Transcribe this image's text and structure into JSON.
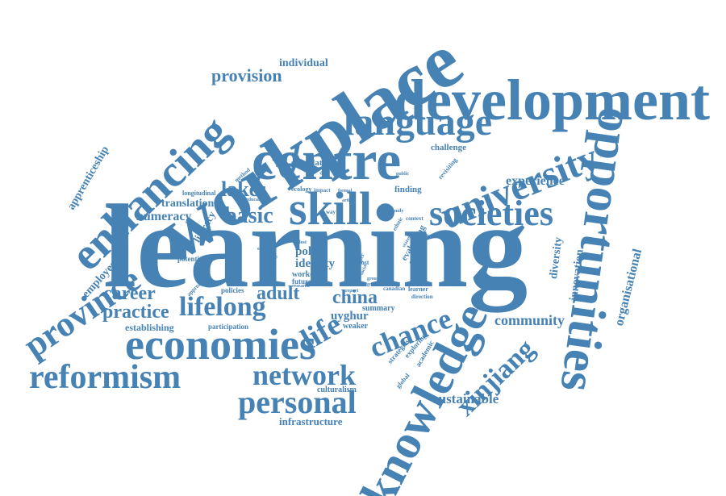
{
  "cloud": {
    "color": "#4682b4",
    "words": [
      "learning",
      "workplace",
      "development",
      "opportunities",
      "knowledge",
      "enhancing",
      "centre",
      "language",
      "university",
      "societies",
      "skill",
      "province",
      "economies",
      "reformism",
      "personal",
      "network",
      "life",
      "lifelong",
      "xinjiang",
      "chance",
      "basic",
      "lakes",
      "china",
      "adult",
      "career",
      "practice",
      "community",
      "experience",
      "innovation",
      "diversity",
      "organisational",
      "sustainable",
      "provision",
      "individual",
      "apprenticeship",
      "employee",
      "numeracy",
      "translation",
      "literacy",
      "identity",
      "policy",
      "uyghur",
      "establishing",
      "participation",
      "infrastructure",
      "culturalism",
      "summary",
      "weaker",
      "challenge",
      "stimulating",
      "strategies",
      "academic",
      "exploring",
      "evaluating",
      "stronger",
      "finding",
      "context",
      "ethnic",
      "policies",
      "potential",
      "approach",
      "longitudinal",
      "educated",
      "ecology",
      "impact",
      "method",
      "hoffman",
      "revisiting",
      "most",
      "worker",
      "future",
      "research",
      "canadian",
      "learner",
      "direction",
      "lost",
      "putting",
      "paper",
      "social",
      "routine",
      "tactic",
      "report",
      "family",
      "way",
      "article",
      "formal",
      "effect",
      "group",
      "good",
      "public",
      "status",
      "global",
      "organisation",
      "immigrant"
    ]
  }
}
